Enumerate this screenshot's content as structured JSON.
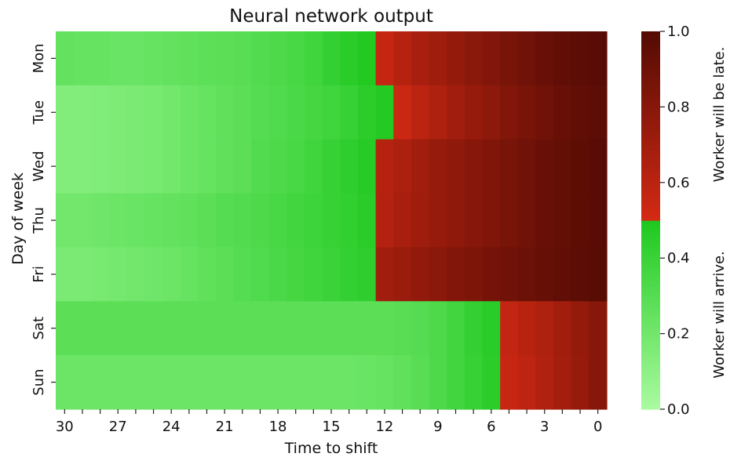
{
  "chart_data": {
    "type": "heatmap",
    "title": "Neural network output",
    "xlabel": "Time to shift",
    "ylabel": "Day of week",
    "x": [
      30,
      29,
      28,
      27,
      26,
      25,
      24,
      23,
      22,
      21,
      20,
      19,
      18,
      17,
      16,
      15,
      14,
      13,
      12,
      11,
      10,
      9,
      8,
      7,
      6,
      5,
      4,
      3,
      2,
      1,
      0
    ],
    "x_tick_labels": [
      "30",
      "27",
      "24",
      "21",
      "18",
      "15",
      "12",
      "9",
      "6",
      "3",
      "0"
    ],
    "x_tick_values": [
      30,
      27,
      24,
      21,
      18,
      15,
      12,
      9,
      6,
      3,
      0
    ],
    "rows": [
      "Mon",
      "Tue",
      "Wed",
      "Thu",
      "Fri",
      "Sat",
      "Sun"
    ],
    "values": [
      [
        0.25,
        0.24,
        0.24,
        0.23,
        0.23,
        0.24,
        0.25,
        0.26,
        0.27,
        0.28,
        0.29,
        0.31,
        0.33,
        0.35,
        0.38,
        0.42,
        0.46,
        0.49,
        0.56,
        0.62,
        0.67,
        0.71,
        0.75,
        0.79,
        0.82,
        0.86,
        0.89,
        0.92,
        0.95,
        0.97,
        0.98
      ],
      [
        0.14,
        0.14,
        0.15,
        0.16,
        0.17,
        0.18,
        0.2,
        0.22,
        0.24,
        0.26,
        0.28,
        0.3,
        0.32,
        0.34,
        0.36,
        0.38,
        0.41,
        0.45,
        0.48,
        0.54,
        0.6,
        0.65,
        0.7,
        0.74,
        0.78,
        0.82,
        0.86,
        0.89,
        0.92,
        0.95,
        0.97
      ],
      [
        0.14,
        0.14,
        0.15,
        0.16,
        0.17,
        0.18,
        0.2,
        0.22,
        0.24,
        0.26,
        0.28,
        0.31,
        0.33,
        0.35,
        0.38,
        0.41,
        0.44,
        0.47,
        0.62,
        0.66,
        0.7,
        0.74,
        0.77,
        0.8,
        0.83,
        0.86,
        0.89,
        0.92,
        0.94,
        0.96,
        0.98
      ],
      [
        0.2,
        0.2,
        0.21,
        0.22,
        0.23,
        0.24,
        0.25,
        0.26,
        0.28,
        0.3,
        0.31,
        0.33,
        0.35,
        0.37,
        0.39,
        0.41,
        0.43,
        0.46,
        0.63,
        0.67,
        0.71,
        0.74,
        0.77,
        0.8,
        0.83,
        0.86,
        0.89,
        0.92,
        0.94,
        0.96,
        0.98
      ],
      [
        0.17,
        0.17,
        0.18,
        0.19,
        0.2,
        0.21,
        0.22,
        0.24,
        0.26,
        0.28,
        0.3,
        0.32,
        0.34,
        0.36,
        0.38,
        0.4,
        0.42,
        0.44,
        0.7,
        0.73,
        0.76,
        0.79,
        0.82,
        0.84,
        0.87,
        0.89,
        0.91,
        0.93,
        0.95,
        0.97,
        0.99
      ],
      [
        0.28,
        0.28,
        0.28,
        0.28,
        0.28,
        0.28,
        0.28,
        0.28,
        0.28,
        0.28,
        0.28,
        0.28,
        0.28,
        0.28,
        0.28,
        0.28,
        0.28,
        0.28,
        0.28,
        0.29,
        0.3,
        0.33,
        0.37,
        0.42,
        0.46,
        0.57,
        0.61,
        0.65,
        0.7,
        0.75,
        0.8
      ],
      [
        0.22,
        0.22,
        0.22,
        0.22,
        0.22,
        0.22,
        0.22,
        0.22,
        0.22,
        0.22,
        0.22,
        0.22,
        0.22,
        0.22,
        0.22,
        0.22,
        0.22,
        0.23,
        0.24,
        0.26,
        0.29,
        0.33,
        0.37,
        0.41,
        0.45,
        0.55,
        0.59,
        0.64,
        0.69,
        0.74,
        0.8
      ]
    ],
    "colorbar": {
      "range": [
        0.0,
        1.0
      ],
      "ticks": [
        "0.0",
        "0.2",
        "0.4",
        "0.6",
        "0.8",
        "1.0"
      ],
      "tick_values": [
        0.0,
        0.2,
        0.4,
        0.6,
        0.8,
        1.0
      ],
      "labels": [
        "Worker will arrive.",
        "Worker will be late."
      ],
      "threshold": 0.5
    },
    "colors": {
      "green_low": "#aafba0",
      "green_high": "#1ec81e",
      "red_low": "#d42a14",
      "red_high": "#540b04"
    }
  }
}
